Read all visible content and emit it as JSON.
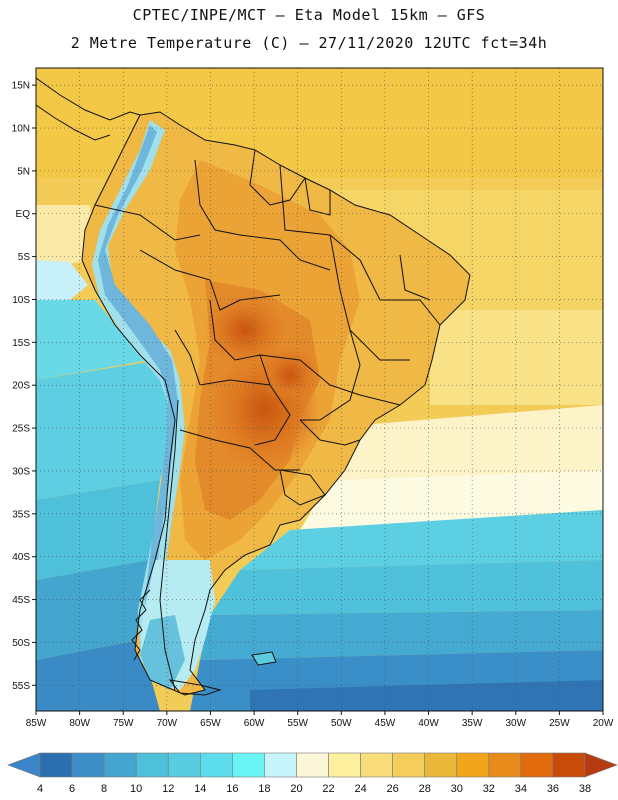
{
  "header": {
    "title_line1": "CPTEC/INPE/MCT  –  Eta Model 15km  –  GFS",
    "title_line2": "2 Metre Temperature (C) – 27/11/2020 12UTC fct=34h"
  },
  "map": {
    "lon_range": [
      -85,
      -20
    ],
    "lat_range": [
      -58,
      17
    ],
    "lat_ticks": [
      "15N",
      "10N",
      "5N",
      "EQ",
      "5S",
      "10S",
      "15S",
      "20S",
      "25S",
      "30S",
      "35S",
      "40S",
      "45S",
      "50S",
      "55S"
    ],
    "lat_values": [
      15,
      10,
      5,
      0,
      -5,
      -10,
      -15,
      -20,
      -25,
      -30,
      -35,
      -40,
      -45,
      -50,
      -55
    ],
    "lon_ticks": [
      "85W",
      "80W",
      "75W",
      "70W",
      "65W",
      "60W",
      "55W",
      "50W",
      "45W",
      "40W",
      "35W",
      "30W",
      "25W",
      "20W"
    ],
    "lon_values": [
      -85,
      -80,
      -75,
      -70,
      -65,
      -60,
      -55,
      -50,
      -45,
      -40,
      -35,
      -30,
      -25,
      -20
    ]
  },
  "colorbar": {
    "levels": [
      "4",
      "6",
      "8",
      "10",
      "12",
      "14",
      "16",
      "18",
      "20",
      "22",
      "24",
      "26",
      "28",
      "30",
      "32",
      "34",
      "36",
      "38"
    ],
    "colors": [
      "#3a86c8",
      "#2b6fb0",
      "#3c8ec6",
      "#44a6cf",
      "#4ec0da",
      "#58cce0",
      "#5dddeb",
      "#6af5f5",
      "#c8f4fb",
      "#fdf7d9",
      "#fdf1a0",
      "#f8dd7a",
      "#f4cd5a",
      "#eab73a",
      "#f2a51a",
      "#e98a1c",
      "#e16a0d",
      "#c84b0a",
      "#b53a0f"
    ]
  }
}
